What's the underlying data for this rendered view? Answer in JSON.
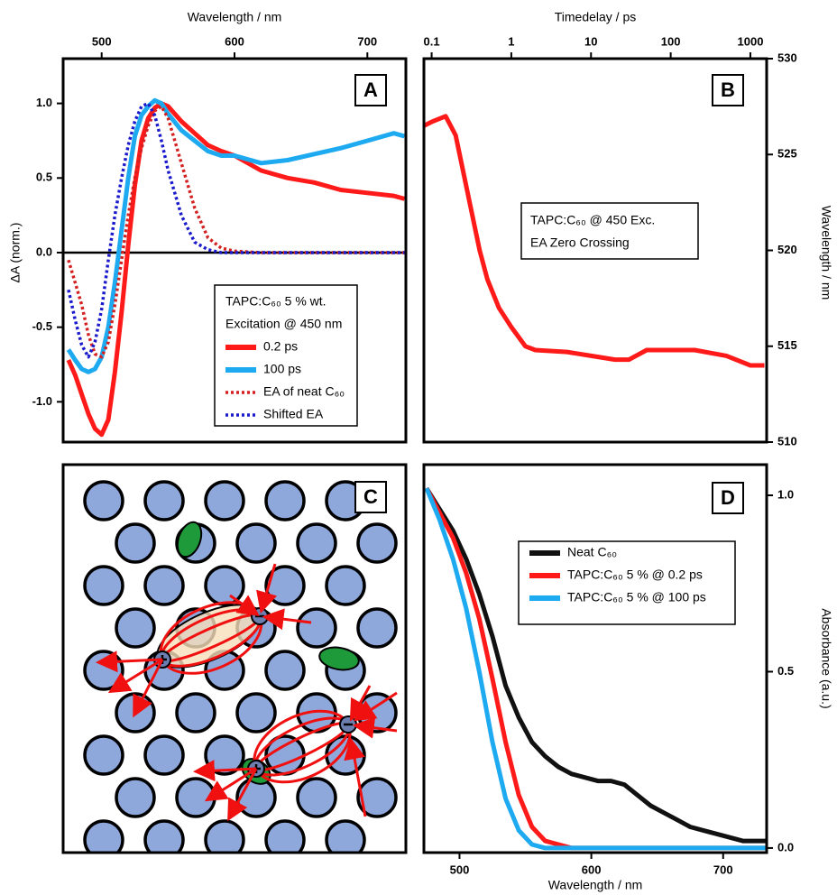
{
  "chart_data": [
    {
      "type": "line",
      "panel_label": "A",
      "x_label": "Wavelength / nm",
      "y_label": "ΔA (norm.)",
      "annotation": [
        "TAPC:C₆₀ 5 % wt.",
        "Excitation @ 450 nm"
      ],
      "x": [
        475,
        480,
        485,
        490,
        495,
        500,
        505,
        510,
        515,
        520,
        525,
        530,
        535,
        540,
        545,
        550,
        560,
        570,
        580,
        590,
        600,
        620,
        640,
        660,
        680,
        700,
        720,
        728
      ],
      "series": [
        {
          "name": "0.2 ps",
          "color": "#ff1a1a",
          "linestyle": "solid",
          "values": [
            -0.72,
            -0.82,
            -0.95,
            -1.08,
            -1.18,
            -1.22,
            -1.12,
            -0.8,
            -0.4,
            0.05,
            0.45,
            0.75,
            0.9,
            0.97,
            1.0,
            0.98,
            0.88,
            0.8,
            0.72,
            0.68,
            0.65,
            0.55,
            0.5,
            0.47,
            0.42,
            0.4,
            0.38,
            0.36
          ]
        },
        {
          "name": "100 ps",
          "color": "#1eaaf0",
          "linestyle": "solid",
          "values": [
            -0.65,
            -0.72,
            -0.78,
            -0.8,
            -0.78,
            -0.7,
            -0.5,
            -0.2,
            0.15,
            0.5,
            0.78,
            0.92,
            0.98,
            1.02,
            1.0,
            0.93,
            0.82,
            0.75,
            0.68,
            0.65,
            0.65,
            0.6,
            0.62,
            0.66,
            0.7,
            0.75,
            0.8,
            0.78
          ]
        },
        {
          "name": "EA of neat C₆₀",
          "color": "#d42020",
          "linestyle": "dotted",
          "values": [
            -0.05,
            -0.2,
            -0.35,
            -0.55,
            -0.68,
            -0.7,
            -0.6,
            -0.35,
            -0.05,
            0.25,
            0.5,
            0.7,
            0.85,
            0.95,
            0.98,
            0.9,
            0.6,
            0.3,
            0.1,
            0.03,
            0.01,
            0,
            0,
            0,
            0,
            0,
            0,
            0
          ]
        },
        {
          "name": "Shifted EA",
          "color": "#1a1acc",
          "linestyle": "dotted",
          "values": [
            -0.25,
            -0.45,
            -0.62,
            -0.7,
            -0.6,
            -0.38,
            -0.05,
            0.25,
            0.5,
            0.72,
            0.88,
            0.98,
            1.0,
            0.92,
            0.75,
            0.55,
            0.25,
            0.07,
            0.02,
            0,
            0,
            0,
            0,
            0,
            0,
            0,
            0,
            0
          ]
        }
      ],
      "xlim": [
        471,
        729
      ],
      "ylim": [
        -1.27,
        1.3
      ],
      "xticks": [
        500,
        600,
        700
      ],
      "yticks": [
        {
          "value": -1,
          "label": "-1.0"
        },
        -0.5,
        {
          "value": 0,
          "label": "0.0"
        },
        0.5,
        {
          "value": 1,
          "label": "1.0"
        }
      ],
      "zero_line": true
    },
    {
      "type": "line",
      "panel_label": "B",
      "x_label": "Timedelay / ps",
      "y_label": "Wavelength / nm",
      "annotation": [
        "TAPC:C₆₀ @ 450 Exc.",
        "EA Zero Crossing"
      ],
      "x": [
        0.08,
        0.1,
        0.15,
        0.2,
        0.3,
        0.4,
        0.5,
        0.7,
        1,
        1.5,
        2,
        5,
        10,
        20,
        30,
        50,
        100,
        200,
        500,
        1000,
        1500
      ],
      "series": [
        {
          "color": "#ff1a1a",
          "linestyle": "solid",
          "values": [
            526.5,
            526.7,
            527,
            526,
            522.5,
            520,
            518.5,
            517,
            516,
            515,
            514.8,
            514.7,
            514.5,
            514.3,
            514.3,
            514.8,
            514.8,
            514.8,
            514.5,
            514,
            514
          ]
        }
      ],
      "xlim": [
        0.08,
        1600
      ],
      "ylim": [
        510,
        530
      ],
      "xscale": "log",
      "xticks": [
        0.1,
        1,
        10,
        100,
        1000
      ],
      "yticks": [
        510,
        515,
        520,
        525,
        530
      ]
    },
    {
      "type": "line",
      "panel_label": "D",
      "x_label": "Wavelength / nm",
      "y_label": "Absorbance (a.u.)",
      "x": [
        475,
        485,
        495,
        505,
        515,
        525,
        535,
        545,
        555,
        565,
        575,
        585,
        595,
        605,
        615,
        625,
        635,
        645,
        655,
        665,
        675,
        685,
        695,
        705,
        715,
        725,
        733
      ],
      "series": [
        {
          "name": "Neat C₆₀",
          "color": "#111111",
          "linestyle": "solid",
          "values": [
            1.02,
            0.96,
            0.9,
            0.82,
            0.72,
            0.6,
            0.46,
            0.37,
            0.3,
            0.26,
            0.23,
            0.21,
            0.2,
            0.19,
            0.19,
            0.18,
            0.15,
            0.12,
            0.1,
            0.08,
            0.06,
            0.05,
            0.04,
            0.03,
            0.02,
            0.02,
            0.02
          ]
        },
        {
          "name": "TAPC:C₆₀ 5 % @ 0.2 ps",
          "color": "#ff1a1a",
          "linestyle": "solid",
          "values": [
            1.02,
            0.95,
            0.88,
            0.78,
            0.65,
            0.48,
            0.3,
            0.15,
            0.06,
            0.02,
            0.01,
            0,
            0,
            0,
            0,
            0,
            0,
            0,
            0,
            0,
            0,
            0,
            0,
            0,
            0,
            0,
            0
          ]
        },
        {
          "name": "TAPC:C₆₀ 5 % @ 100 ps",
          "color": "#1eaaf0",
          "linestyle": "solid",
          "values": [
            1.02,
            0.93,
            0.82,
            0.68,
            0.5,
            0.3,
            0.14,
            0.05,
            0.01,
            0,
            0,
            0,
            0,
            0,
            0,
            0,
            0,
            0,
            0,
            0,
            0,
            0,
            0,
            0,
            0,
            0,
            0
          ]
        }
      ],
      "xlim": [
        473,
        733
      ],
      "ylim": [
        -0.013,
        1.087
      ],
      "xticks": [
        500,
        600,
        700
      ],
      "yticks": [
        {
          "value": 0,
          "label": "0.0"
        },
        0.5,
        {
          "value": 1,
          "label": "1.0"
        }
      ]
    }
  ],
  "diagram": {
    "panel_label": "C"
  }
}
